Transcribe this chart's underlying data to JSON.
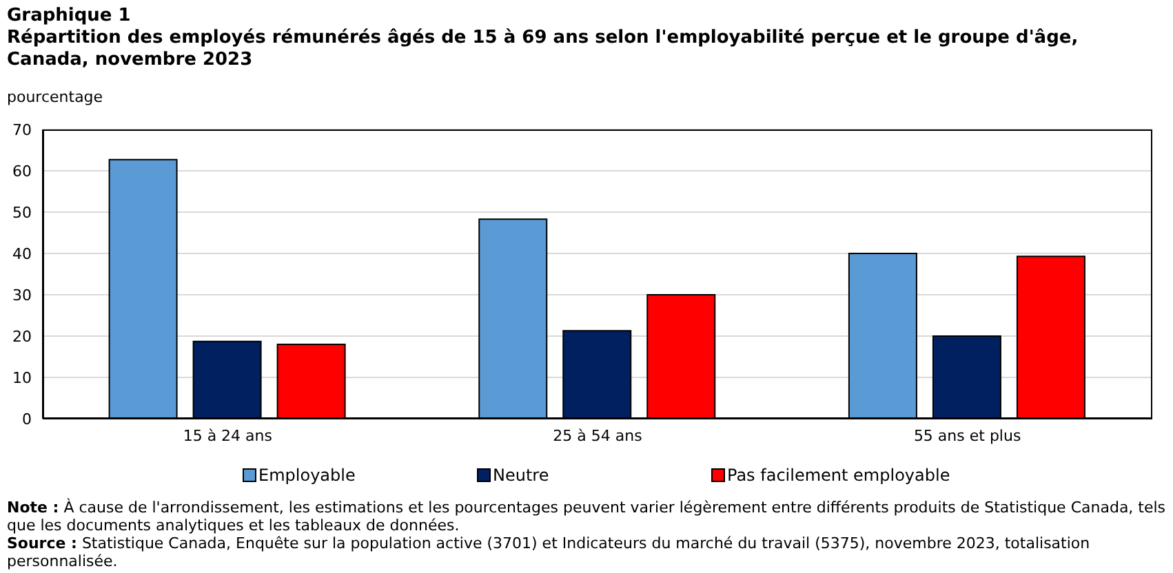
{
  "chart_data": {
    "type": "bar",
    "title": "Graphique  1",
    "subtitle": "Répartition  des employés rémunérés  âgés de 15 à 69 ans selon l'employabilité  perçue et le groupe d'âge, Canada, novembre 2023",
    "ylabel": "pourcentage",
    "categories": [
      "15 à 24 ans",
      "25 à 54 ans",
      "55 ans et plus"
    ],
    "series": [
      {
        "name": "Employable",
        "color": "#5b9bd5",
        "values": [
          62.7,
          48.3,
          40.0
        ]
      },
      {
        "name": "Neutre",
        "color": "#002060",
        "values": [
          18.7,
          21.3,
          20.0
        ]
      },
      {
        "name": "Pas facilement employable",
        "color": "#ff0000",
        "values": [
          18.0,
          30.0,
          39.3
        ]
      }
    ],
    "ylim": [
      0,
      70
    ],
    "yticks": [
      0,
      10,
      20,
      30,
      40,
      50,
      60,
      70
    ],
    "grid": "y",
    "legend": "bottom",
    "annotations": [
      "Note : À cause de l'arrondissement, les estimations et les pourcentages peuvent varier légèrement entre différents produits de Statistique  Canada, tels que les documents analytiques et les tableaux de données.",
      "Source : Statistique  Canada, Enquête sur la population active (3701) et Indicateurs du marché du travail (5375), novembre 2023, totalisation personnalisée."
    ]
  }
}
